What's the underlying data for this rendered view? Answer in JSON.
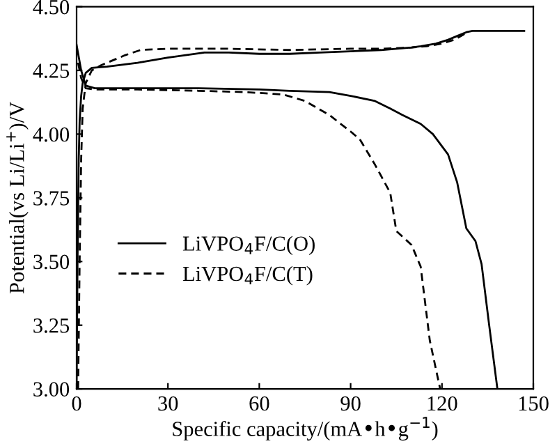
{
  "chart_data": {
    "type": "line",
    "xlabel": "Specific capacity/(mA•h•g$^{−1}$)",
    "ylabel": "Potential(vs Li/Li$^{+}$)/V",
    "xlim": [
      0,
      150
    ],
    "ylim": [
      3.0,
      4.5
    ],
    "xticks": [
      0,
      30,
      60,
      90,
      120,
      150
    ],
    "yticks": [
      {
        "value": 3.0,
        "label": "3.00"
      },
      {
        "value": 3.25,
        "label": "3.25"
      },
      {
        "value": 3.5,
        "label": "3.50"
      },
      {
        "value": 3.75,
        "label": "3.75"
      },
      {
        "value": 4.0,
        "label": "4.00"
      },
      {
        "value": 4.25,
        "label": "4.25"
      },
      {
        "value": 4.5,
        "label": "4.50"
      }
    ],
    "grid": false,
    "legend": "lower left",
    "marker": "none",
    "series": [
      {
        "name": "LiVPO$_{4}$F/C(O)",
        "color": "#000000",
        "line_style": "solid",
        "x": [
          0,
          0.3,
          0.7,
          1,
          1.5,
          2,
          3,
          5,
          10,
          20,
          30,
          42,
          50,
          60,
          70,
          80,
          90,
          100,
          110,
          113,
          118,
          122,
          125,
          128,
          130,
          147
        ],
        "values": [
          3.0,
          3.5,
          3.9,
          4.05,
          4.15,
          4.2,
          4.24,
          4.26,
          4.265,
          4.28,
          4.3,
          4.32,
          4.32,
          4.315,
          4.315,
          4.32,
          4.325,
          4.33,
          4.34,
          4.345,
          4.355,
          4.37,
          4.385,
          4.4,
          4.405,
          4.405
        ]
      },
      {
        "color": "#000000",
        "line_style": "solid",
        "x": [
          0,
          1.5,
          3,
          6,
          20,
          40,
          60,
          70,
          83,
          90,
          98,
          103,
          107,
          113,
          117,
          122,
          125,
          128,
          131,
          133,
          135.5,
          138.2
        ],
        "values": [
          4.35,
          4.25,
          4.19,
          4.18,
          4.18,
          4.18,
          4.175,
          4.17,
          4.165,
          4.15,
          4.13,
          4.1,
          4.075,
          4.04,
          4.0,
          3.92,
          3.81,
          3.63,
          3.58,
          3.49,
          3.25,
          3.0
        ]
      },
      {
        "name": "LiVPO$_{4}$F/C(T)",
        "color": "#000000",
        "line_style": "dashed",
        "x": [
          0.5,
          1,
          1.5,
          2,
          3,
          5,
          8,
          12,
          16,
          21,
          30,
          50,
          70,
          90,
          100,
          110,
          115,
          120,
          124,
          127,
          128
        ],
        "values": [
          3.0,
          3.5,
          3.9,
          4.1,
          4.2,
          4.25,
          4.27,
          4.29,
          4.31,
          4.33,
          4.335,
          4.335,
          4.33,
          4.335,
          4.335,
          4.34,
          4.345,
          4.355,
          4.37,
          4.39,
          4.4
        ]
      },
      {
        "color": "#000000",
        "line_style": "dashed",
        "x": [
          0.5,
          1.5,
          3,
          6,
          20,
          40,
          55,
          62,
          68,
          75,
          83,
          90,
          93,
          98,
          103,
          105,
          110,
          113,
          116,
          119.4
        ],
        "values": [
          4.28,
          4.22,
          4.18,
          4.175,
          4.175,
          4.17,
          4.165,
          4.16,
          4.155,
          4.13,
          4.075,
          4.01,
          3.98,
          3.88,
          3.77,
          3.62,
          3.565,
          3.48,
          3.19,
          3.0
        ]
      }
    ]
  }
}
